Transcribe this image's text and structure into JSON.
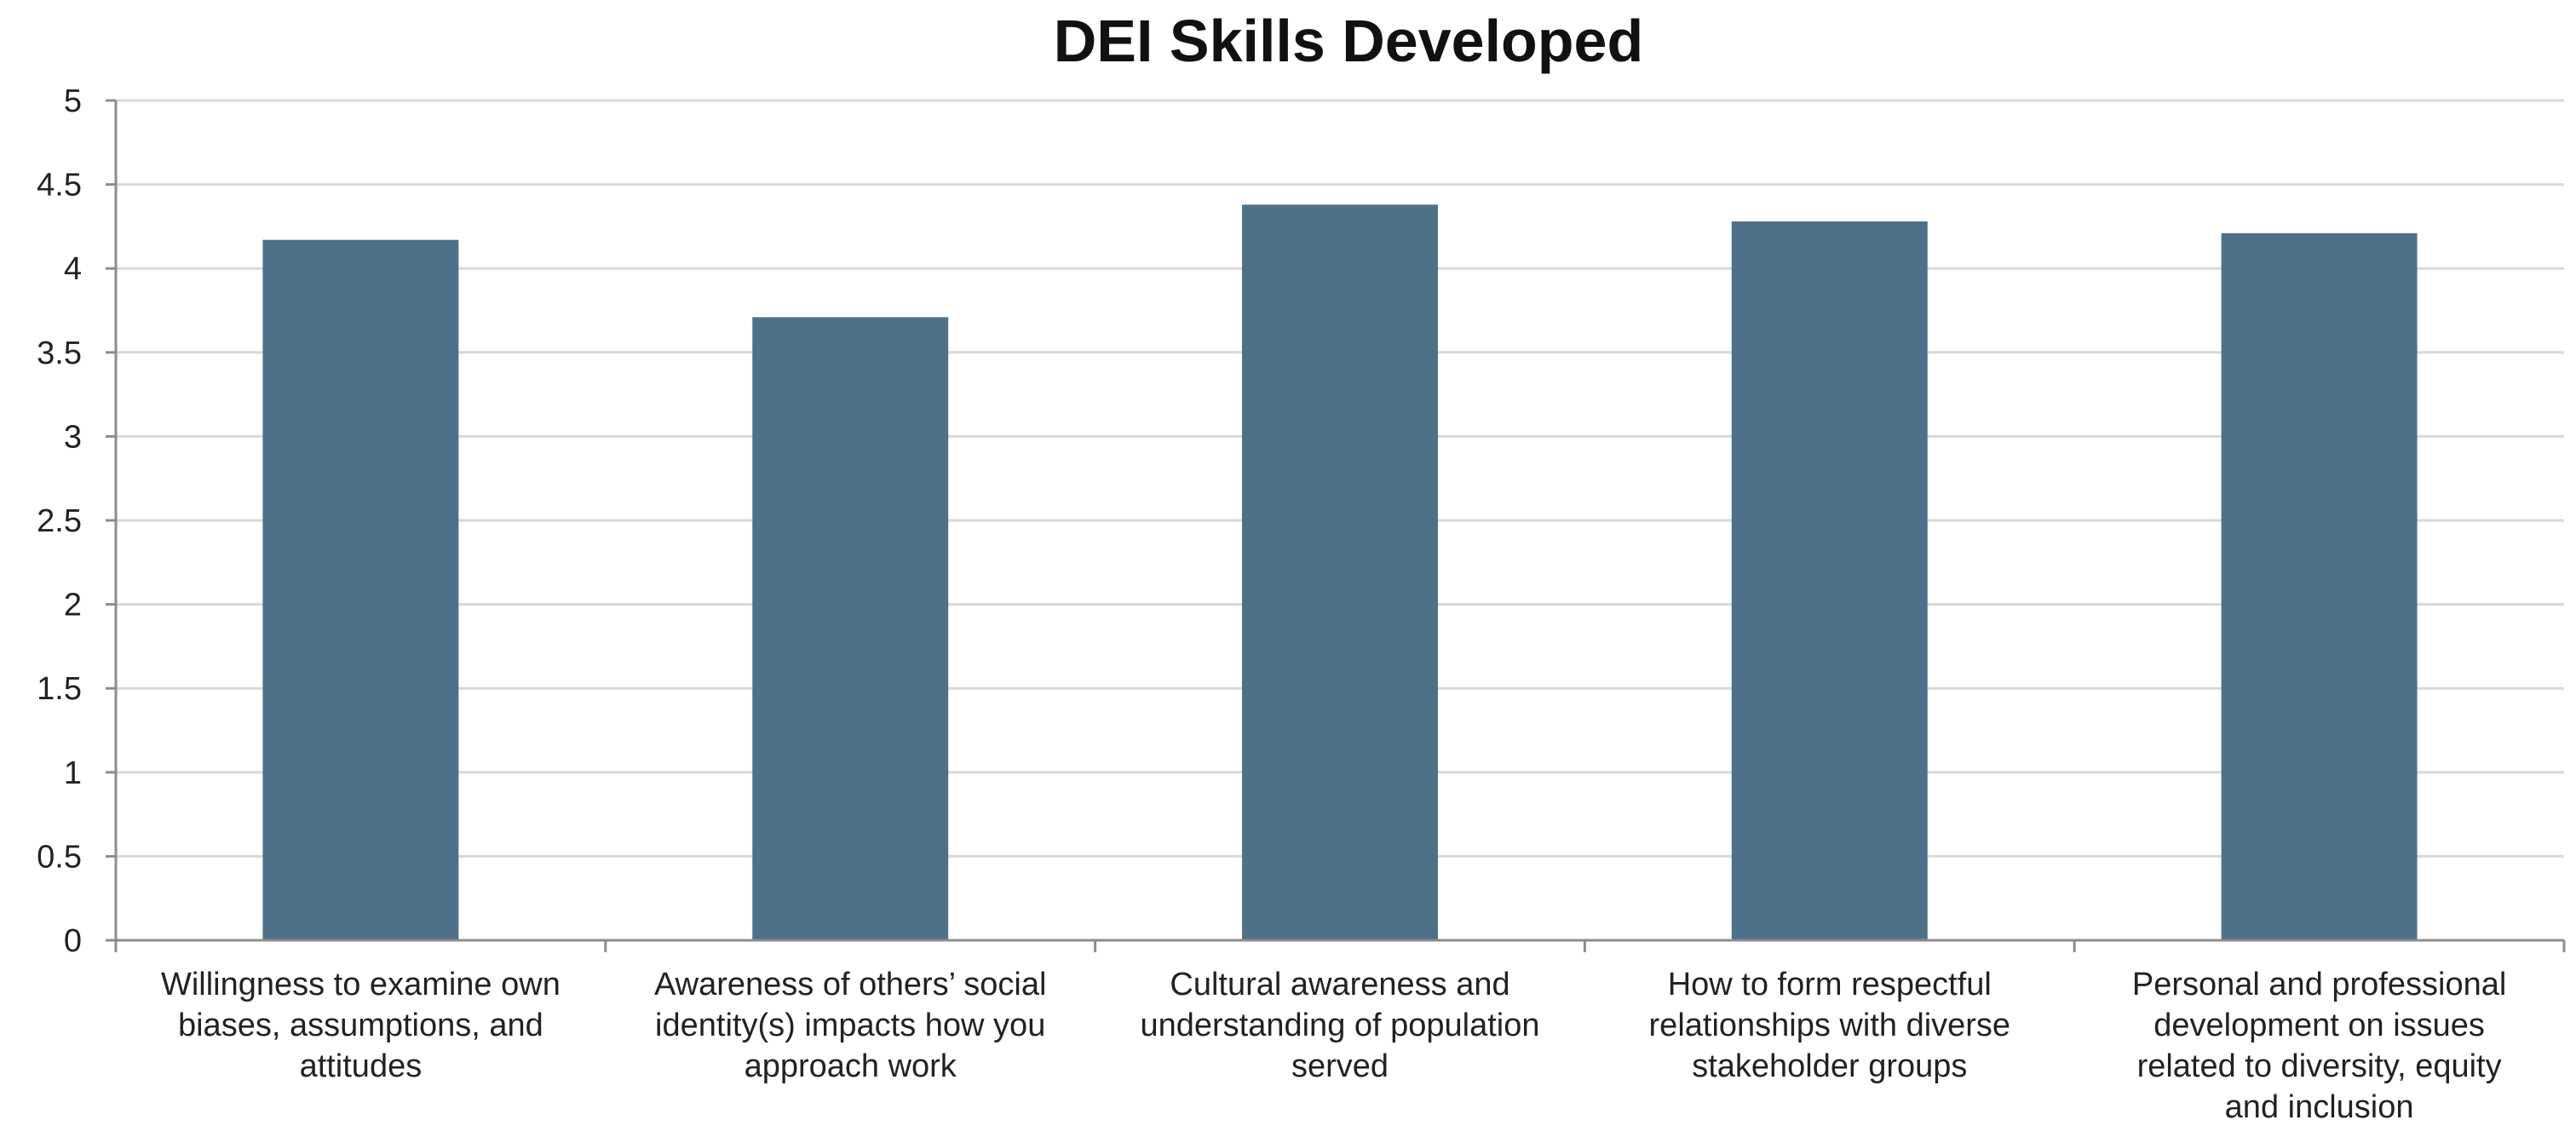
{
  "chart_data": {
    "type": "bar",
    "title": "DEI Skills Developed",
    "xlabel": "",
    "ylabel": "",
    "ylim": [
      0,
      5
    ],
    "yticks": [
      "0",
      "0.5",
      "1",
      "1.5",
      "2",
      "2.5",
      "3",
      "3.5",
      "4",
      "4.5",
      "5"
    ],
    "grid": true,
    "legend": "none",
    "bar_color": "#4e7089",
    "categories": [
      "Willingness to examine own biases, assumptions, and attitudes",
      "Awareness of others’ social identity(s) impacts how you approach work",
      "Cultural awareness and understanding of population served",
      "How to form respectful relationships with diverse stakeholder groups",
      "Personal and professional development on issues related to diversity, equity and inclusion"
    ],
    "category_lines": [
      [
        "Willingness to examine own",
        "biases, assumptions, and",
        "attitudes"
      ],
      [
        "Awareness of others’ social",
        "identity(s) impacts how you",
        "approach work"
      ],
      [
        "Cultural awareness and",
        "understanding of population",
        "served"
      ],
      [
        "How to form respectful",
        "relationships with diverse",
        "stakeholder groups"
      ],
      [
        "Personal and professional",
        "development on issues",
        "related to diversity, equity",
        "and inclusion"
      ]
    ],
    "values": [
      4.17,
      3.71,
      4.38,
      4.28,
      4.21
    ]
  }
}
